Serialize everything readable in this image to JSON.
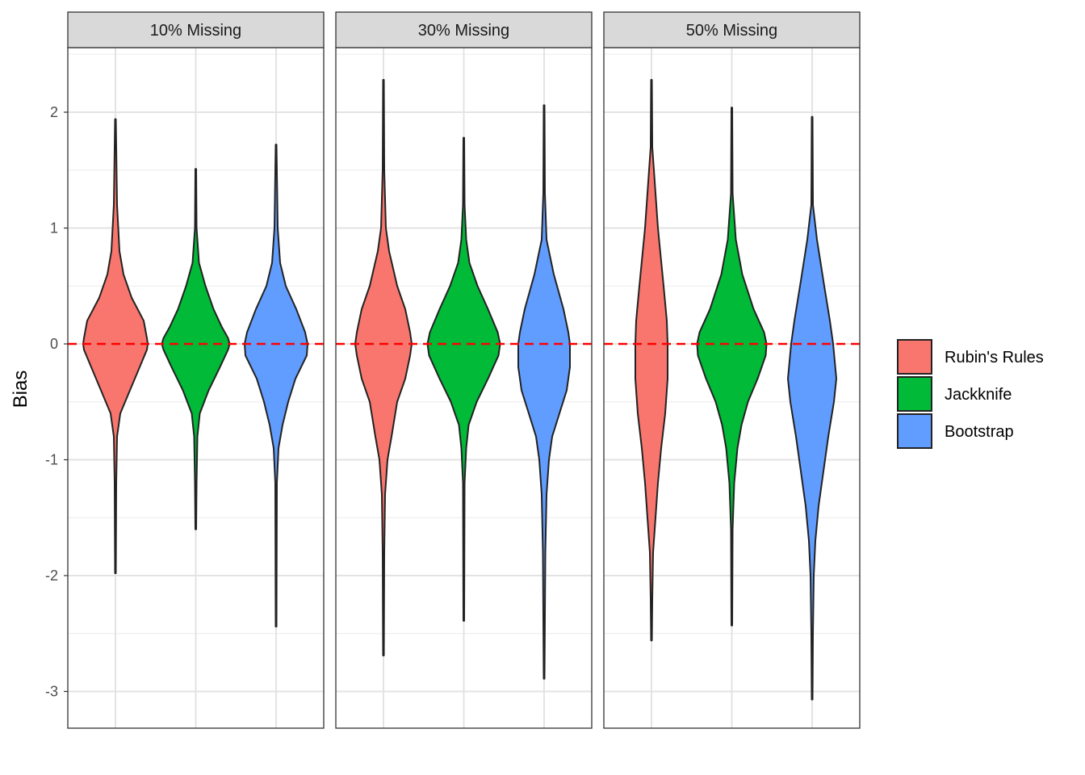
{
  "chart_data": {
    "type": "violin",
    "ylabel": "Bias",
    "xlabel": "",
    "ylim": [
      -3.3,
      2.55
    ],
    "yticks": [
      -3,
      -2,
      -1,
      0,
      1,
      2
    ],
    "ytick_labels": [
      "-3",
      "-2",
      "-1",
      "0",
      "1",
      "2"
    ],
    "grid": true,
    "reference_line": {
      "y": 0,
      "color": "#FF0000",
      "style": "dashed"
    },
    "legend": {
      "position": "right",
      "items": [
        {
          "label": "Rubin's Rules",
          "color": "#F8766D"
        },
        {
          "label": "Jackknife",
          "color": "#00BA38"
        },
        {
          "label": "Bootstrap",
          "color": "#619CFF"
        }
      ]
    },
    "panels": [
      {
        "title": "10% Missing",
        "violins": [
          {
            "method": "Rubin's Rules",
            "min": -1.98,
            "max": 1.94,
            "profile": [
              [
                1.94,
                0.005
              ],
              [
                1.2,
                0.02
              ],
              [
                0.8,
                0.05
              ],
              [
                0.6,
                0.1
              ],
              [
                0.4,
                0.2
              ],
              [
                0.2,
                0.35
              ],
              [
                0.05,
                0.39
              ],
              [
                0,
                0.4
              ],
              [
                -0.05,
                0.39
              ],
              [
                -0.2,
                0.3
              ],
              [
                -0.4,
                0.18
              ],
              [
                -0.6,
                0.06
              ],
              [
                -0.8,
                0.02
              ],
              [
                -1.2,
                0.01
              ],
              [
                -1.98,
                0.005
              ]
            ]
          },
          {
            "method": "Jackknife",
            "min": -1.6,
            "max": 1.51,
            "profile": [
              [
                1.51,
                0.005
              ],
              [
                1.0,
                0.01
              ],
              [
                0.7,
                0.04
              ],
              [
                0.5,
                0.12
              ],
              [
                0.3,
                0.22
              ],
              [
                0.15,
                0.32
              ],
              [
                0.05,
                0.4
              ],
              [
                0,
                0.42
              ],
              [
                -0.05,
                0.4
              ],
              [
                -0.2,
                0.3
              ],
              [
                -0.4,
                0.16
              ],
              [
                -0.6,
                0.05
              ],
              [
                -0.8,
                0.02
              ],
              [
                -1.2,
                0.01
              ],
              [
                -1.6,
                0.005
              ]
            ]
          },
          {
            "method": "Bootstrap",
            "min": -2.44,
            "max": 1.72,
            "profile": [
              [
                1.72,
                0.005
              ],
              [
                1.0,
                0.02
              ],
              [
                0.7,
                0.05
              ],
              [
                0.5,
                0.12
              ],
              [
                0.3,
                0.25
              ],
              [
                0.1,
                0.36
              ],
              [
                0,
                0.39
              ],
              [
                -0.1,
                0.38
              ],
              [
                -0.3,
                0.24
              ],
              [
                -0.5,
                0.15
              ],
              [
                -0.7,
                0.08
              ],
              [
                -0.9,
                0.03
              ],
              [
                -1.2,
                0.01
              ],
              [
                -2.44,
                0.005
              ]
            ]
          }
        ]
      },
      {
        "title": "30% Missing",
        "violins": [
          {
            "method": "Rubin's Rules",
            "min": -2.69,
            "max": 2.28,
            "profile": [
              [
                2.28,
                0.005
              ],
              [
                1.5,
                0.01
              ],
              [
                1.0,
                0.03
              ],
              [
                0.8,
                0.07
              ],
              [
                0.5,
                0.17
              ],
              [
                0.3,
                0.27
              ],
              [
                0.1,
                0.33
              ],
              [
                0,
                0.35
              ],
              [
                -0.1,
                0.33
              ],
              [
                -0.3,
                0.27
              ],
              [
                -0.5,
                0.17
              ],
              [
                -0.8,
                0.1
              ],
              [
                -1.0,
                0.05
              ],
              [
                -1.3,
                0.02
              ],
              [
                -1.8,
                0.01
              ],
              [
                -2.69,
                0.005
              ]
            ]
          },
          {
            "method": "Jackknife",
            "min": -2.39,
            "max": 1.78,
            "profile": [
              [
                1.78,
                0.005
              ],
              [
                1.2,
                0.01
              ],
              [
                0.9,
                0.03
              ],
              [
                0.7,
                0.07
              ],
              [
                0.5,
                0.17
              ],
              [
                0.3,
                0.3
              ],
              [
                0.1,
                0.42
              ],
              [
                0,
                0.45
              ],
              [
                -0.1,
                0.43
              ],
              [
                -0.3,
                0.3
              ],
              [
                -0.5,
                0.16
              ],
              [
                -0.7,
                0.06
              ],
              [
                -0.9,
                0.03
              ],
              [
                -1.2,
                0.01
              ],
              [
                -2.39,
                0.005
              ]
            ]
          },
          {
            "method": "Bootstrap",
            "min": -2.89,
            "max": 2.06,
            "profile": [
              [
                2.06,
                0.005
              ],
              [
                1.3,
                0.01
              ],
              [
                0.9,
                0.03
              ],
              [
                0.6,
                0.12
              ],
              [
                0.3,
                0.24
              ],
              [
                0.1,
                0.3
              ],
              [
                0,
                0.32
              ],
              [
                -0.2,
                0.32
              ],
              [
                -0.4,
                0.28
              ],
              [
                -0.6,
                0.19
              ],
              [
                -0.8,
                0.1
              ],
              [
                -1.0,
                0.06
              ],
              [
                -1.3,
                0.03
              ],
              [
                -1.8,
                0.015
              ],
              [
                -2.89,
                0.005
              ]
            ]
          }
        ]
      },
      {
        "title": "50% Missing",
        "violins": [
          {
            "method": "Rubin's Rules",
            "min": -2.56,
            "max": 2.28,
            "profile": [
              [
                2.28,
                0.005
              ],
              [
                1.7,
                0.01
              ],
              [
                1.4,
                0.04
              ],
              [
                1.0,
                0.08
              ],
              [
                0.5,
                0.15
              ],
              [
                0.2,
                0.19
              ],
              [
                0,
                0.2
              ],
              [
                -0.3,
                0.2
              ],
              [
                -0.6,
                0.17
              ],
              [
                -0.9,
                0.12
              ],
              [
                -1.2,
                0.08
              ],
              [
                -1.5,
                0.05
              ],
              [
                -1.8,
                0.02
              ],
              [
                -2.2,
                0.01
              ],
              [
                -2.56,
                0.005
              ]
            ]
          },
          {
            "method": "Jackknife",
            "min": -2.43,
            "max": 2.04,
            "profile": [
              [
                2.04,
                0.005
              ],
              [
                1.3,
                0.01
              ],
              [
                0.9,
                0.05
              ],
              [
                0.6,
                0.13
              ],
              [
                0.3,
                0.27
              ],
              [
                0.1,
                0.4
              ],
              [
                0,
                0.43
              ],
              [
                -0.1,
                0.42
              ],
              [
                -0.3,
                0.32
              ],
              [
                -0.5,
                0.2
              ],
              [
                -0.7,
                0.12
              ],
              [
                -0.9,
                0.07
              ],
              [
                -1.2,
                0.03
              ],
              [
                -1.6,
                0.01
              ],
              [
                -2.43,
                0.005
              ]
            ]
          },
          {
            "method": "Bootstrap",
            "min": -3.07,
            "max": 1.96,
            "profile": [
              [
                1.96,
                0.005
              ],
              [
                1.2,
                0.01
              ],
              [
                0.9,
                0.06
              ],
              [
                0.5,
                0.15
              ],
              [
                0.2,
                0.22
              ],
              [
                0,
                0.26
              ],
              [
                -0.3,
                0.3
              ],
              [
                -0.5,
                0.27
              ],
              [
                -0.8,
                0.2
              ],
              [
                -1.1,
                0.14
              ],
              [
                -1.4,
                0.08
              ],
              [
                -1.7,
                0.04
              ],
              [
                -2.0,
                0.02
              ],
              [
                -2.5,
                0.01
              ],
              [
                -3.07,
                0.005
              ]
            ]
          }
        ]
      }
    ]
  }
}
